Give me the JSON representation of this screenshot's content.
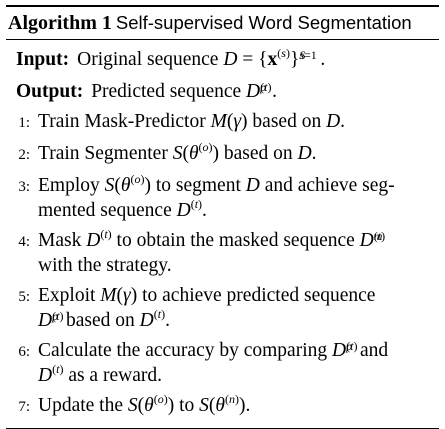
{
  "algorithm": {
    "number_label": "Algorithm 1",
    "title": "Self-supervised Word Segmentation"
  },
  "input": {
    "label": "Input:",
    "text_prefix": "Original sequence",
    "math": "D = {x(s)}S s=1."
  },
  "output": {
    "label": "Output:",
    "text_prefix": "Predicted sequence",
    "math": "Dp(t)."
  },
  "steps": [
    {
      "number": "1:",
      "text": "Train Mask-Predictor M(γ) based on D."
    },
    {
      "number": "2:",
      "text": "Train Segmenter S(θ(o)) based on D."
    },
    {
      "number": "3:",
      "text": "Employ S(θ(o)) to segment D and achieve segmented sequence D(t)."
    },
    {
      "number": "4:",
      "text": "Mask D(t) to obtain the masked sequence Dm(t) with the strategy."
    },
    {
      "number": "5:",
      "text": "Exploit M(γ) to achieve predicted sequence Dp(t) based on D(t)."
    },
    {
      "number": "6:",
      "text": "Calculate the accuracy by comparing Dp(t) and D(t) as a reward."
    },
    {
      "number": "7:",
      "text": "Update the S(θ(o)) to S(θ(n))."
    }
  ]
}
